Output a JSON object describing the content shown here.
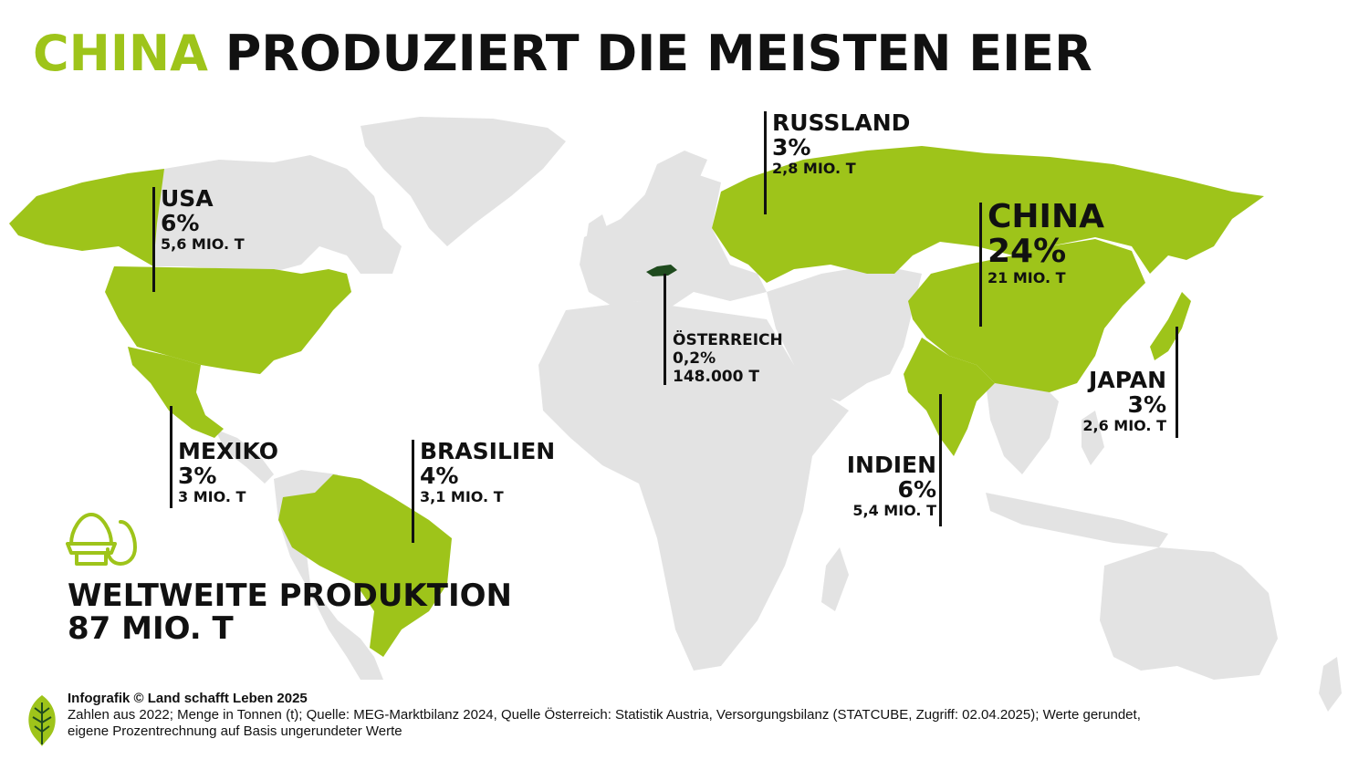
{
  "title": {
    "highlight": "CHINA",
    "rest": " PRODUZIERT DIE MEISTEN EIER"
  },
  "colors": {
    "accent": "#9ec41a",
    "land": "#e3e3e3",
    "austria": "#1f4b1e",
    "text": "#111111"
  },
  "countries": {
    "usa": {
      "name": "USA",
      "share": "6%",
      "amount": "5,6 MIO. T"
    },
    "russland": {
      "name": "RUSSLAND",
      "share": "3%",
      "amount": "2,8 MIO. T"
    },
    "china": {
      "name": "CHINA",
      "share": "24%",
      "amount": "21 MIO. T"
    },
    "oesterreich": {
      "name": "ÖSTERREICH",
      "share": "0,2%",
      "amount": "148.000 T"
    },
    "japan": {
      "name": "JAPAN",
      "share": "3%",
      "amount": "2,6 MIO. T"
    },
    "mexiko": {
      "name": "MEXIKO",
      "share": "3%",
      "amount": "3 MIO. T"
    },
    "brasilien": {
      "name": "BRASILIEN",
      "share": "4%",
      "amount": "3,1 MIO. T"
    },
    "indien": {
      "name": "INDIEN",
      "share": "6%",
      "amount": "5,4 MIO. T"
    }
  },
  "world": {
    "label": "WELTWEITE PRODUKTION",
    "amount": "87 MIO. T",
    "icon": "egg-cup-icon"
  },
  "footer": {
    "credit": "Infografik © Land schafft Leben 2025",
    "line1": "Zahlen aus 2022; Menge in Tonnen (t); Quelle: MEG-Marktbilanz 2024, Quelle Österreich: Statistik Austria, Versorgungsbilanz (STATCUBE, Zugriff: 02.04.2025); Werte gerundet,",
    "line2": "eigene Prozentrechnung auf Basis ungerundeter Werte",
    "logo_icon": "leaf-logo-icon"
  }
}
